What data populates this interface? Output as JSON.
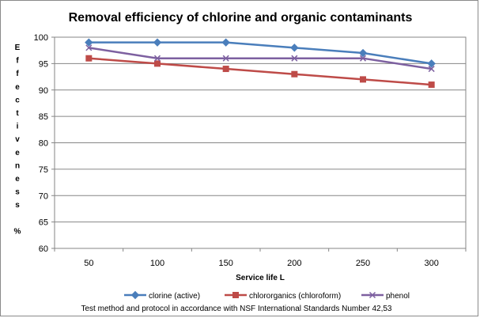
{
  "chart_data": {
    "type": "line",
    "title": "Removal efficiency of chlorine and organic contaminants",
    "xlabel": "Service life L",
    "ylabel_letters": [
      "E",
      "f",
      "f",
      "e",
      "c",
      "t",
      "i",
      "v",
      "e",
      "n",
      "e",
      "s",
      "s",
      "",
      "%"
    ],
    "categories": [
      "50",
      "100",
      "150",
      "200",
      "250",
      "300"
    ],
    "ylim": [
      60,
      100
    ],
    "yticks": [
      60,
      65,
      70,
      75,
      80,
      85,
      90,
      95,
      100
    ],
    "grid": "horizontal",
    "legend_position": "bottom",
    "series": [
      {
        "name": "clorine (active)",
        "color": "#4a7ebb",
        "marker": "diamond",
        "values": [
          99,
          99,
          99,
          98,
          97,
          95
        ]
      },
      {
        "name": "chlororganics (chloroform)",
        "color": "#be4b48",
        "marker": "square",
        "values": [
          96,
          95,
          94,
          93,
          92,
          91
        ]
      },
      {
        "name": "phenol",
        "color": "#7d60a0",
        "marker": "x",
        "values": [
          98,
          96,
          96,
          96,
          96,
          94
        ]
      }
    ],
    "footnote": "Test method and protocol in accordance with NSF International Standards  Number  42,53"
  }
}
